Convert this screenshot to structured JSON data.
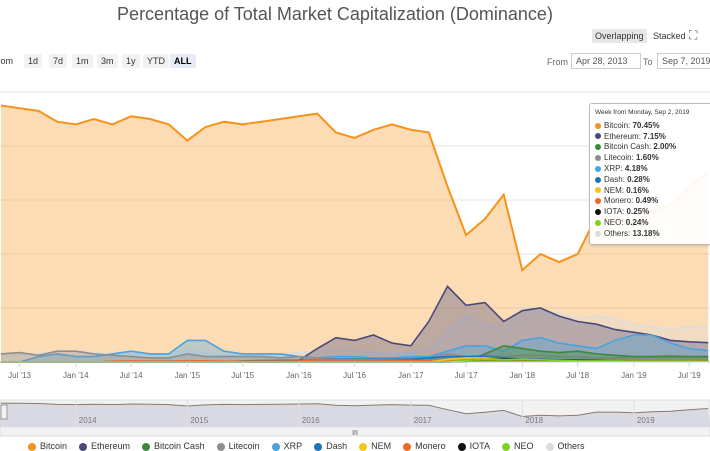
{
  "chart_data": {
    "type": "area",
    "title": "Percentage of Total Market Capitalization (Dominance)",
    "xlabel": "",
    "ylabel": "",
    "x_range": [
      "2013-04-28",
      "2019-09-07"
    ],
    "ylim": [
      0,
      100
    ],
    "x": [
      "2013-05",
      "2013-07",
      "2013-09",
      "2013-11",
      "2014-01",
      "2014-03",
      "2014-05",
      "2014-07",
      "2014-09",
      "2014-11",
      "2015-01",
      "2015-03",
      "2015-05",
      "2015-07",
      "2015-09",
      "2015-11",
      "2016-01",
      "2016-03",
      "2016-05",
      "2016-07",
      "2016-09",
      "2016-11",
      "2017-01",
      "2017-03",
      "2017-05",
      "2017-07",
      "2017-09",
      "2017-11",
      "2018-01",
      "2018-03",
      "2018-05",
      "2018-07",
      "2018-09",
      "2018-11",
      "2019-01",
      "2019-03",
      "2019-05",
      "2019-07",
      "2019-09"
    ],
    "series": [
      {
        "name": "Bitcoin",
        "color": "#f7931a",
        "values": [
          95,
          94,
          93,
          89,
          88,
          90,
          88,
          91,
          90,
          88,
          82,
          87,
          89,
          88,
          89,
          90,
          91,
          92,
          85,
          83,
          86,
          88,
          86,
          85,
          65,
          47,
          53,
          62,
          34,
          40,
          37,
          40,
          54,
          54,
          51,
          56,
          58,
          65,
          70.45
        ]
      },
      {
        "name": "Ethereum",
        "color": "#4a4a7a",
        "values": [
          0,
          0,
          0,
          0,
          0,
          0,
          0,
          0,
          0,
          0,
          0,
          0,
          0,
          0,
          0,
          0.5,
          0.6,
          5,
          9,
          8,
          10,
          7,
          6,
          15,
          28,
          21,
          22,
          15,
          19,
          20,
          17,
          15,
          14,
          12,
          11,
          10,
          8,
          7.5,
          7.15
        ]
      },
      {
        "name": "Bitcoin Cash",
        "color": "#3a8a3a",
        "values": [
          0,
          0,
          0,
          0,
          0,
          0,
          0,
          0,
          0,
          0,
          0,
          0,
          0,
          0,
          0,
          0,
          0,
          0,
          0,
          0,
          0,
          0,
          0,
          0,
          0,
          0,
          3,
          6,
          5,
          4,
          3.5,
          4,
          3,
          2.5,
          2,
          2,
          2,
          2,
          2.0
        ]
      },
      {
        "name": "Litecoin",
        "color": "#8e8e8e",
        "values": [
          3,
          3.5,
          2.5,
          4,
          4,
          3,
          2.5,
          2,
          1.5,
          1.5,
          3,
          2,
          2,
          2,
          2,
          1.5,
          2,
          1.5,
          1,
          1.2,
          1,
          1,
          1.5,
          1.5,
          3,
          2,
          2.5,
          2,
          2.5,
          2.5,
          2,
          2,
          1.5,
          1.5,
          1.8,
          2,
          2.5,
          2,
          1.6
        ]
      },
      {
        "name": "XRP",
        "color": "#4aa3df",
        "values": [
          0,
          0,
          2,
          3,
          2,
          2,
          3,
          4,
          3,
          3,
          8,
          8,
          4,
          3,
          3,
          3,
          2,
          1.5,
          2,
          2,
          1.5,
          1.5,
          2,
          2,
          4,
          6,
          6,
          4,
          8,
          9,
          7,
          6,
          5,
          8,
          10,
          10,
          7,
          5,
          4.18
        ]
      },
      {
        "name": "Dash",
        "color": "#1c75bc",
        "values": [
          0,
          0,
          0,
          0,
          0,
          0,
          0.2,
          0.3,
          0.3,
          0.3,
          0.3,
          0.3,
          0.2,
          0.4,
          0.5,
          0.6,
          0.6,
          0.8,
          1,
          1,
          1,
          1,
          1,
          1.5,
          2,
          2,
          2,
          1.5,
          1,
          1,
          0.8,
          0.8,
          0.6,
          0.5,
          0.4,
          0.4,
          0.4,
          0.3,
          0.28
        ]
      },
      {
        "name": "NEM",
        "color": "#f5c518",
        "values": [
          0,
          0,
          0,
          0,
          0,
          0,
          0,
          0,
          0,
          0,
          0,
          0,
          0,
          0,
          0,
          0,
          0,
          0,
          0,
          0,
          0,
          0,
          0,
          0,
          1,
          1.5,
          1.5,
          1,
          1,
          0.6,
          0.5,
          0.4,
          0.3,
          0.3,
          0.2,
          0.2,
          0.2,
          0.2,
          0.16
        ]
      },
      {
        "name": "Monero",
        "color": "#f26822",
        "values": [
          0,
          0,
          0,
          0,
          0,
          0,
          0.3,
          0.4,
          0.3,
          0.3,
          0.4,
          0.4,
          0.3,
          0.3,
          0.3,
          0.3,
          0.4,
          0.8,
          0.8,
          0.8,
          0.8,
          0.7,
          0.6,
          0.6,
          0.8,
          0.8,
          0.8,
          0.6,
          0.6,
          0.7,
          0.6,
          0.5,
          0.5,
          0.6,
          0.6,
          0.6,
          0.5,
          0.5,
          0.49
        ]
      },
      {
        "name": "IOTA",
        "color": "#111111",
        "values": [
          0,
          0,
          0,
          0,
          0,
          0,
          0,
          0,
          0,
          0,
          0,
          0,
          0,
          0,
          0,
          0,
          0,
          0,
          0,
          0,
          0,
          0,
          0,
          0,
          0,
          0.5,
          1,
          1,
          1,
          0.7,
          0.6,
          0.5,
          0.5,
          0.4,
          0.3,
          0.3,
          0.3,
          0.3,
          0.25
        ]
      },
      {
        "name": "NEO",
        "color": "#7ed321",
        "values": [
          0,
          0,
          0,
          0,
          0,
          0,
          0,
          0,
          0,
          0,
          0,
          0,
          0,
          0,
          0,
          0,
          0,
          0,
          0,
          0,
          0,
          0,
          0,
          0,
          0,
          0.6,
          1,
          0.8,
          1,
          0.8,
          0.6,
          0.4,
          0.4,
          0.4,
          0.3,
          0.3,
          0.3,
          0.3,
          0.24
        ]
      },
      {
        "name": "Others",
        "color": "#dcdcdc",
        "values": [
          2,
          2.5,
          3,
          4,
          4,
          3.5,
          3,
          3,
          3,
          3,
          4,
          3.5,
          2.5,
          3,
          3,
          3,
          3.5,
          4,
          4,
          4,
          3.5,
          3,
          3.5,
          4,
          12,
          17,
          14,
          12,
          20,
          18,
          18,
          16,
          17,
          16,
          14,
          13,
          12,
          13,
          13.18
        ]
      }
    ],
    "x_tick_labels": [
      "Jul '13",
      "Jan '14",
      "Jul '14",
      "Jan '15",
      "Jul '15",
      "Jan '16",
      "Jul '16",
      "Jan '17",
      "Jul '17",
      "Jan '18",
      "Jul '18",
      "Jan '19",
      "Jul '19"
    ],
    "navigator_labels": [
      "2014",
      "2015",
      "2016",
      "2017",
      "2018",
      "2019"
    ],
    "legend_placement": "bottom",
    "grid": true
  },
  "header": {
    "title": "Percentage of Total Market Capitalization (Dominance)",
    "mode_overlapping": "Overlapping",
    "mode_stacked": "Stacked"
  },
  "controls": {
    "zoom_label": "Zoom",
    "zoom_buttons": [
      "1d",
      "7d",
      "1m",
      "3m",
      "1y",
      "YTD",
      "ALL"
    ],
    "from_label": "From",
    "from_value": "Apr 28, 2013",
    "to_label": "To",
    "to_value": "Sep 7, 2019"
  },
  "tooltip": {
    "header": "Week from Monday, Sep 2, 2019",
    "items": [
      {
        "name": "Bitcoin",
        "value": "70.45%",
        "color": "#f7931a"
      },
      {
        "name": "Ethereum",
        "value": "7.15%",
        "color": "#4a4a7a"
      },
      {
        "name": "Bitcoin Cash",
        "value": "2.00%",
        "color": "#3a8a3a"
      },
      {
        "name": "Litecoin",
        "value": "1.60%",
        "color": "#8e8e8e"
      },
      {
        "name": "XRP",
        "value": "4.18%",
        "color": "#4aa3df"
      },
      {
        "name": "Dash",
        "value": "0.28%",
        "color": "#1c75bc"
      },
      {
        "name": "NEM",
        "value": "0.16%",
        "color": "#f5c518"
      },
      {
        "name": "Monero",
        "value": "0.49%",
        "color": "#f26822"
      },
      {
        "name": "IOTA",
        "value": "0.25%",
        "color": "#111111"
      },
      {
        "name": "NEO",
        "value": "0.24%",
        "color": "#7ed321"
      },
      {
        "name": "Others",
        "value": "13.18%",
        "color": "#dcdcdc"
      }
    ]
  }
}
